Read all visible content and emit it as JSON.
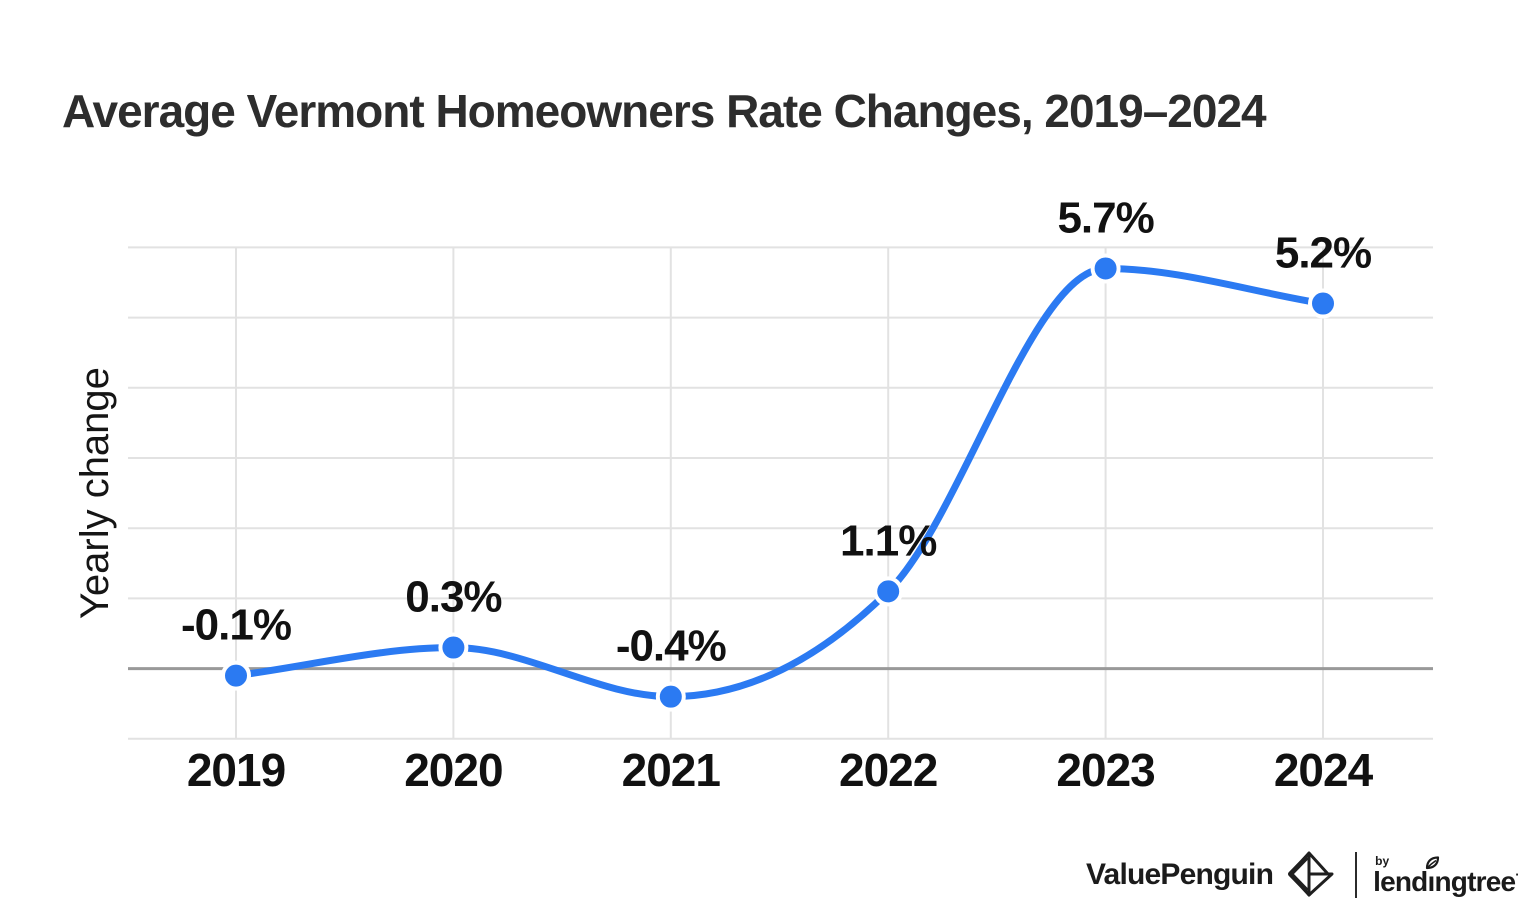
{
  "header": {
    "title": "Average Vermont Homeowners Rate Changes, 2019–2024"
  },
  "chart_data": {
    "type": "line",
    "title": "Average Vermont Homeowners Rate Changes, 2019–2024",
    "categories": [
      "2019",
      "2020",
      "2021",
      "2022",
      "2023",
      "2024"
    ],
    "series": [
      {
        "name": "Yearly change",
        "values": [
          -0.1,
          0.3,
          -0.4,
          1.1,
          5.7,
          5.2
        ],
        "point_labels": [
          "-0.1%",
          "0.3%",
          "-0.4%",
          "1.1%",
          "5.7%",
          "5.2%"
        ]
      }
    ],
    "xlabel": "",
    "ylabel": "Yearly change",
    "ylim": [
      -1,
      6
    ],
    "y_gridline_step": 1,
    "grid": true,
    "legend": "none",
    "curve": "smooth-monotone",
    "markers": "filled-circle-white-halo",
    "colors": {
      "line": "#2b7af2",
      "marker": "#2b7af2",
      "marker_halo": "#ffffff",
      "zero_line": "#999999",
      "gridline": "#e2e2e2",
      "label_text": "#111111",
      "axis_text": "#111111",
      "title_text": "#2d2d2d"
    }
  },
  "footer": {
    "brand1": "ValuePenguin",
    "by_label": "by",
    "lt_part1": "lend",
    "lt_i": "ı",
    "lt_part2": "ngtree",
    "lt_tm": "·"
  }
}
